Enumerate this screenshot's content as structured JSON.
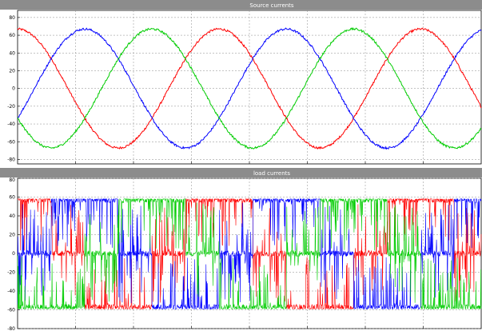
{
  "chart_data": [
    {
      "type": "line",
      "title": "Source currents",
      "xlabel": "",
      "ylabel": "",
      "ylim": [
        -85,
        88
      ],
      "yticks": [
        -80,
        -60,
        -40,
        -20,
        0,
        20,
        40,
        60,
        80
      ],
      "xlim": [
        0,
        1
      ],
      "grid": true,
      "waveform": "sine",
      "cycles": 2.3,
      "series": [
        {
          "color": "#ff0000",
          "amplitude": 67,
          "phase_deg": 90
        },
        {
          "color": "#0000ff",
          "amplitude": 67,
          "phase_deg": -30
        },
        {
          "color": "#00cc00",
          "amplitude": 67,
          "phase_deg": 210
        }
      ]
    },
    {
      "type": "line",
      "title": "load currents",
      "xlabel": "",
      "ylabel": "",
      "ylim": [
        -80,
        80
      ],
      "yticks": [
        -80,
        -60,
        -40,
        -20,
        0,
        20,
        40,
        60,
        80
      ],
      "xlim": [
        0,
        1
      ],
      "grid": true,
      "waveform": "six-step",
      "cycles": 2.3,
      "series": [
        {
          "color": "#ff0000",
          "amplitude": 57,
          "phase_deg": 90
        },
        {
          "color": "#0000ff",
          "amplitude": 57,
          "phase_deg": -30
        },
        {
          "color": "#00cc00",
          "amplitude": 57,
          "phase_deg": 210
        }
      ]
    }
  ]
}
